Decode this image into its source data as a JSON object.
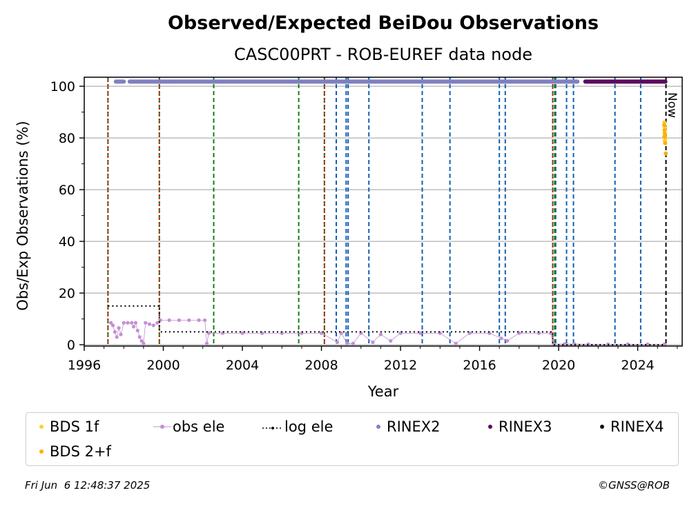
{
  "chart_data": {
    "type": "scatter",
    "title": "Observed/Expected BeiDou Observations",
    "subtitle": "CASC00PRT - ROB-EUREF data node",
    "xlabel": "Year",
    "ylabel": "Obs/Exp Observations (%)",
    "xlim": [
      1996.0,
      2026.25
    ],
    "ylim": [
      -0.5,
      103.5
    ],
    "x_ticks": [
      1996,
      2000,
      2004,
      2008,
      2012,
      2016,
      2020,
      2024
    ],
    "x_tick_labels": [
      "1996",
      "2000",
      "2004",
      "2008",
      "2012",
      "2016",
      "2020",
      "2024"
    ],
    "y_ticks": [
      0,
      20,
      40,
      60,
      80,
      100
    ],
    "y_tick_labels": [
      "0",
      "20",
      "40",
      "60",
      "80",
      "100"
    ],
    "grid": "horizontal",
    "now_label": "Now",
    "now_x": 2025.43,
    "vlines": {
      "red_dotted": [
        1997.2,
        1999.8,
        2008.15,
        2019.7
      ],
      "green_dashed": [
        1997.2,
        1999.8,
        2002.55,
        2006.85,
        2008.15,
        2019.7,
        2019.8
      ],
      "blue_dashed": [
        2008.75,
        2009.25,
        2009.35,
        2010.4,
        2013.1,
        2014.5,
        2017.0,
        2017.3,
        2019.85,
        2020.4,
        2020.75,
        2022.85,
        2024.15
      ]
    },
    "series": [
      {
        "name": "BDS 1f",
        "color": "#ffcc33",
        "marker": "dot",
        "points": [
          [
            2025.35,
            86
          ],
          [
            2025.38,
            84
          ],
          [
            2025.36,
            82
          ],
          [
            2025.4,
            80
          ],
          [
            2025.37,
            79
          ]
        ]
      },
      {
        "name": "BDS 2+f",
        "color": "#ffb000",
        "marker": "dot",
        "points": [
          [
            2025.34,
            85
          ],
          [
            2025.36,
            83
          ],
          [
            2025.38,
            81.5
          ],
          [
            2025.35,
            80.5
          ],
          [
            2025.39,
            78
          ],
          [
            2025.42,
            74
          ]
        ]
      },
      {
        "name": "obs ele",
        "color": "#c390d4",
        "marker": "line-dot",
        "points": [
          [
            1997.35,
            8.5
          ],
          [
            1997.45,
            7.5
          ],
          [
            1997.55,
            5
          ],
          [
            1997.65,
            3
          ],
          [
            1997.75,
            6.5
          ],
          [
            1997.85,
            4
          ],
          [
            1998.0,
            8.5
          ],
          [
            1998.2,
            8.5
          ],
          [
            1998.4,
            8.5
          ],
          [
            1998.5,
            7
          ],
          [
            1998.6,
            8.5
          ],
          [
            1998.7,
            5.5
          ],
          [
            1998.8,
            3
          ],
          [
            1998.9,
            1.5
          ],
          [
            1999.0,
            0.5
          ],
          [
            1999.1,
            8.5
          ],
          [
            1999.3,
            8
          ],
          [
            1999.5,
            7.5
          ],
          [
            1999.7,
            8.5
          ],
          [
            1999.85,
            9.5
          ],
          [
            2000.3,
            9.5
          ],
          [
            2000.8,
            9.5
          ],
          [
            2001.3,
            9.5
          ],
          [
            2001.8,
            9.5
          ],
          [
            2002.1,
            9.5
          ],
          [
            2002.2,
            0.5
          ],
          [
            2002.3,
            4.5
          ],
          [
            2003.0,
            4.5
          ],
          [
            2004.0,
            4.5
          ],
          [
            2005.0,
            4.5
          ],
          [
            2006.0,
            4.5
          ],
          [
            2007.0,
            4.5
          ],
          [
            2008.0,
            4.5
          ],
          [
            2008.8,
            1
          ],
          [
            2009.0,
            4.5
          ],
          [
            2009.3,
            0.5
          ],
          [
            2009.6,
            0.5
          ],
          [
            2010.0,
            4.5
          ],
          [
            2010.6,
            1
          ],
          [
            2011.0,
            4
          ],
          [
            2011.5,
            1.5
          ],
          [
            2012.0,
            4.5
          ],
          [
            2013.0,
            4.5
          ],
          [
            2014.0,
            4.5
          ],
          [
            2014.8,
            0.5
          ],
          [
            2015.5,
            4.5
          ],
          [
            2016.5,
            4.5
          ],
          [
            2017.1,
            2.5
          ],
          [
            2017.4,
            1.5
          ],
          [
            2018.0,
            4.5
          ],
          [
            2019.0,
            4.5
          ],
          [
            2019.6,
            4.5
          ],
          [
            2019.75,
            0.3
          ],
          [
            2020.3,
            0.3
          ],
          [
            2020.8,
            0.3
          ],
          [
            2021.5,
            0.2
          ],
          [
            2022.5,
            0.2
          ],
          [
            2023.5,
            0.2
          ],
          [
            2024.5,
            0.2
          ],
          [
            2025.35,
            0.2
          ]
        ]
      },
      {
        "name": "log ele",
        "color": "#000000",
        "marker": "dotted-step",
        "points": [
          [
            1997.2,
            15
          ],
          [
            1999.8,
            15
          ],
          [
            1999.8,
            5
          ],
          [
            2019.7,
            5
          ],
          [
            2019.7,
            0
          ],
          [
            2025.43,
            0
          ]
        ]
      },
      {
        "name": "RINEX2",
        "color": "#8080c0",
        "marker": "dot",
        "ranges": [
          [
            1997.6,
            1998.0,
            101.8
          ],
          [
            1998.3,
            2020.95,
            101.8
          ]
        ]
      },
      {
        "name": "RINEX3",
        "color": "#5c0a5e",
        "marker": "dot",
        "ranges": [
          [
            2021.35,
            2025.4,
            101.8
          ]
        ]
      },
      {
        "name": "RINEX4",
        "color": "#1a0a1e",
        "marker": "dot",
        "ranges": []
      }
    ]
  },
  "footer": {
    "timestamp": "Fri Jun  6 12:48:37 2025",
    "credit": "©GNSS@ROB"
  }
}
